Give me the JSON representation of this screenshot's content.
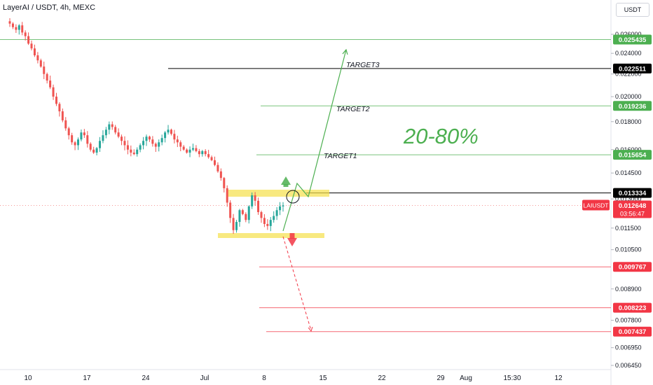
{
  "header": {
    "title": "LayerAI / USDT, 4h, MEXC",
    "currency_button": "USDT"
  },
  "colors": {
    "up": "#26a69a",
    "down": "#ef5350",
    "target": "#4caf50",
    "stop": "#f23645",
    "zone": "#f5e04a",
    "black": "#000000",
    "grid": "#e0e3eb"
  },
  "chart_data": {
    "type": "candlestick",
    "symbol": "LAIUSDT",
    "timeframe": "4h",
    "exchange": "MEXC",
    "y_axis": {
      "scale": "log",
      "range": [
        0.00645,
        0.0275
      ],
      "ticks": [
        "0.026000",
        "0.024000",
        "0.022000",
        "0.020000",
        "0.018000",
        "0.016000",
        "0.014500",
        "0.013000",
        "0.011500",
        "0.010500",
        "0.008900",
        "0.007800",
        "0.006950",
        "0.006450"
      ]
    },
    "x_axis": {
      "ticks": [
        "10",
        "17",
        "24",
        "Jul",
        "8",
        "15",
        "22",
        "29",
        "Aug",
        "15:30",
        "12"
      ]
    },
    "price_close_path": [
      0.0272,
      0.0268,
      0.0265,
      0.027,
      0.0262,
      0.0258,
      0.025,
      0.0245,
      0.0238,
      0.0233,
      0.0227,
      0.022,
      0.0214,
      0.0208,
      0.02,
      0.0194,
      0.0188,
      0.0181,
      0.0175,
      0.017,
      0.0165,
      0.0163,
      0.0167,
      0.0172,
      0.017,
      0.0164,
      0.016,
      0.0158,
      0.0161,
      0.0166,
      0.017,
      0.0174,
      0.0178,
      0.0176,
      0.0172,
      0.0169,
      0.0166,
      0.0163,
      0.016,
      0.0158,
      0.0157,
      0.016,
      0.0163,
      0.0166,
      0.0169,
      0.0167,
      0.0164,
      0.0162,
      0.0165,
      0.0168,
      0.0172,
      0.0174,
      0.0171,
      0.0167,
      0.0165,
      0.0162,
      0.016,
      0.0158,
      0.016,
      0.0161,
      0.0159,
      0.0157,
      0.0159,
      0.0157,
      0.0155,
      0.0153,
      0.015,
      0.0146,
      0.0142,
      0.0136,
      0.0128,
      0.012,
      0.0114,
      0.0118,
      0.0124,
      0.0122,
      0.0119,
      0.0126,
      0.0132,
      0.0129,
      0.0123,
      0.012,
      0.0117,
      0.0116,
      0.0119,
      0.0121,
      0.0124,
      0.0126,
      0.01265
    ],
    "levels": [
      {
        "price": "0.025435",
        "kind": "target"
      },
      {
        "price": "0.022511",
        "kind": "black"
      },
      {
        "price": "0.019236",
        "kind": "target"
      },
      {
        "price": "0.015654",
        "kind": "target"
      },
      {
        "price": "0.013334",
        "kind": "black"
      },
      {
        "price": "0.009767",
        "kind": "stop"
      },
      {
        "price": "0.008223",
        "kind": "stop"
      },
      {
        "price": "0.007437",
        "kind": "stop"
      }
    ],
    "current_price": {
      "symbol": "LAIUSDT",
      "price": "0.012648",
      "countdown": "03:56:47"
    },
    "annotations": {
      "targets": [
        "TARGET3",
        "TARGET2",
        "TARGET1"
      ],
      "gain_range": "20-80%"
    }
  }
}
